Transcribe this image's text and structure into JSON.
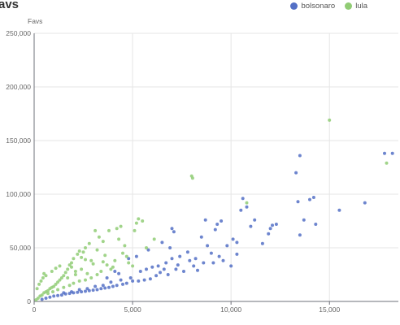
{
  "chart_data": {
    "type": "scatter",
    "title": "avs",
    "xlabel": "",
    "ylabel": "Favs",
    "xlim": [
      0,
      18500
    ],
    "ylim": [
      0,
      250000
    ],
    "x_ticks": [
      0,
      5000,
      10000,
      15000
    ],
    "x_tick_labels": [
      "0",
      "5,000",
      "10,000",
      "15,000"
    ],
    "y_ticks": [
      0,
      50000,
      100000,
      150000,
      200000,
      250000
    ],
    "y_tick_labels": [
      "0",
      "50,000",
      "100,000",
      "150,000",
      "200,000",
      "250,000"
    ],
    "grid": true,
    "legend_position": "top-right",
    "series": [
      {
        "name": "bolsonaro",
        "color": "#5470c6",
        "points": [
          [
            13500,
            136000
          ],
          [
            17800,
            138000
          ],
          [
            18200,
            138000
          ],
          [
            14000,
            95000
          ],
          [
            14200,
            97000
          ],
          [
            13400,
            93000
          ],
          [
            15500,
            85000
          ],
          [
            16800,
            92000
          ],
          [
            13700,
            76000
          ],
          [
            14300,
            72000
          ],
          [
            13500,
            62000
          ],
          [
            10500,
            85000
          ],
          [
            10600,
            96000
          ],
          [
            10800,
            88000
          ],
          [
            11200,
            76000
          ],
          [
            12000,
            68000
          ],
          [
            12100,
            71000
          ],
          [
            11900,
            63000
          ],
          [
            11600,
            54000
          ],
          [
            12300,
            72000
          ],
          [
            9300,
            72000
          ],
          [
            9500,
            75000
          ],
          [
            8700,
            76000
          ],
          [
            9200,
            67000
          ],
          [
            8500,
            60000
          ],
          [
            10100,
            58000
          ],
          [
            10300,
            55000
          ],
          [
            10300,
            44000
          ],
          [
            9800,
            52000
          ],
          [
            8800,
            52000
          ],
          [
            9000,
            45000
          ],
          [
            8200,
            40000
          ],
          [
            7800,
            46000
          ],
          [
            7400,
            42000
          ],
          [
            7000,
            40000
          ],
          [
            6700,
            36000
          ],
          [
            6300,
            33000
          ],
          [
            6000,
            32000
          ],
          [
            5700,
            30000
          ],
          [
            5400,
            28000
          ],
          [
            7200,
            30000
          ],
          [
            8100,
            33000
          ],
          [
            9100,
            36000
          ],
          [
            6900,
            50000
          ],
          [
            7100,
            65000
          ],
          [
            7000,
            68000
          ],
          [
            6500,
            55000
          ],
          [
            5800,
            48000
          ],
          [
            5200,
            42000
          ],
          [
            4800,
            40000
          ],
          [
            5600,
            20000
          ],
          [
            5300,
            19000
          ],
          [
            5000,
            19000
          ],
          [
            4700,
            17000
          ],
          [
            4500,
            16000
          ],
          [
            4200,
            15000
          ],
          [
            4000,
            14000
          ],
          [
            3800,
            13000
          ],
          [
            3600,
            12500
          ],
          [
            3400,
            12000
          ],
          [
            3200,
            11000
          ],
          [
            3000,
            10500
          ],
          [
            2800,
            10000
          ],
          [
            2600,
            9500
          ],
          [
            2400,
            9000
          ],
          [
            2200,
            8500
          ],
          [
            2000,
            8000
          ],
          [
            1800,
            7500
          ],
          [
            1600,
            7000
          ],
          [
            1400,
            6000
          ],
          [
            1200,
            5500
          ],
          [
            1000,
            5000
          ],
          [
            800,
            4000
          ],
          [
            600,
            3000
          ],
          [
            400,
            2000
          ],
          [
            6200,
            24000
          ],
          [
            5900,
            21000
          ],
          [
            4900,
            22000
          ],
          [
            4400,
            20000
          ],
          [
            3900,
            18000
          ],
          [
            3500,
            15000
          ],
          [
            3100,
            14000
          ],
          [
            2700,
            12000
          ],
          [
            2300,
            11000
          ],
          [
            1900,
            9000
          ],
          [
            1500,
            8000
          ],
          [
            6400,
            27000
          ],
          [
            6800,
            25000
          ],
          [
            7600,
            28000
          ],
          [
            8300,
            29000
          ],
          [
            8600,
            36000
          ],
          [
            9600,
            38000
          ],
          [
            10000,
            33000
          ],
          [
            9400,
            42000
          ],
          [
            7900,
            38000
          ],
          [
            7300,
            34000
          ],
          [
            6600,
            30000
          ],
          [
            4300,
            26000
          ],
          [
            4100,
            28000
          ],
          [
            3700,
            22000
          ],
          [
            13300,
            120000
          ],
          [
            11000,
            70000
          ]
        ]
      },
      {
        "name": "lula",
        "color": "#91cc75",
        "points": [
          [
            15000,
            169000
          ],
          [
            17900,
            129000
          ],
          [
            8000,
            117000
          ],
          [
            8050,
            115000
          ],
          [
            10800,
            92000
          ],
          [
            5300,
            77000
          ],
          [
            5500,
            75000
          ],
          [
            5200,
            73000
          ],
          [
            5100,
            66000
          ],
          [
            4400,
            70000
          ],
          [
            4200,
            68000
          ],
          [
            3800,
            66000
          ],
          [
            3100,
            66000
          ],
          [
            3300,
            60000
          ],
          [
            3500,
            56000
          ],
          [
            3200,
            48000
          ],
          [
            4300,
            58000
          ],
          [
            2800,
            54000
          ],
          [
            2600,
            50000
          ],
          [
            2500,
            46000
          ],
          [
            2300,
            47000
          ],
          [
            2200,
            44000
          ],
          [
            4500,
            45000
          ],
          [
            4700,
            42000
          ],
          [
            3600,
            43000
          ],
          [
            2000,
            40000
          ],
          [
            1900,
            36000
          ],
          [
            1800,
            34000
          ],
          [
            3000,
            35000
          ],
          [
            2900,
            38000
          ],
          [
            3700,
            34000
          ],
          [
            4100,
            38000
          ],
          [
            3900,
            30000
          ],
          [
            4600,
            52000
          ],
          [
            2400,
            30000
          ],
          [
            2700,
            26000
          ],
          [
            2100,
            25000
          ],
          [
            1700,
            30000
          ],
          [
            1600,
            27000
          ],
          [
            1500,
            24000
          ],
          [
            1400,
            22000
          ],
          [
            1300,
            20000
          ],
          [
            1200,
            18000
          ],
          [
            1100,
            16000
          ],
          [
            1000,
            14000
          ],
          [
            900,
            13000
          ],
          [
            800,
            12000
          ],
          [
            700,
            10000
          ],
          [
            600,
            9000
          ],
          [
            500,
            8000
          ],
          [
            400,
            6000
          ],
          [
            300,
            5000
          ],
          [
            200,
            3000
          ],
          [
            100,
            1500
          ],
          [
            3400,
            28000
          ],
          [
            3200,
            25000
          ],
          [
            2900,
            22000
          ],
          [
            2600,
            20000
          ],
          [
            2300,
            19000
          ],
          [
            2000,
            17000
          ],
          [
            1800,
            15000
          ],
          [
            1500,
            13000
          ],
          [
            1200,
            11000
          ],
          [
            950,
            9000
          ],
          [
            700,
            7500
          ],
          [
            500,
            26000
          ],
          [
            600,
            24000
          ],
          [
            450,
            22000
          ],
          [
            350,
            19000
          ],
          [
            250,
            16000
          ],
          [
            150,
            12000
          ],
          [
            1100,
            31000
          ],
          [
            900,
            28000
          ],
          [
            1300,
            33000
          ],
          [
            1900,
            32000
          ],
          [
            2400,
            41000
          ],
          [
            2600,
            39000
          ],
          [
            3500,
            37000
          ],
          [
            4000,
            32000
          ],
          [
            4800,
            36000
          ],
          [
            5000,
            33000
          ],
          [
            5700,
            50000
          ],
          [
            6100,
            58000
          ],
          [
            1700,
            22000
          ],
          [
            2100,
            28000
          ]
        ]
      }
    ]
  }
}
